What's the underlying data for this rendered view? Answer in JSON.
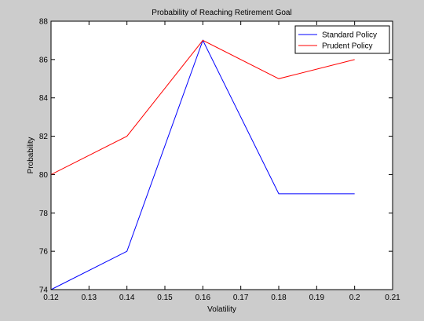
{
  "chart_data": {
    "type": "line",
    "title": "Probability of Reaching Retirement Goal",
    "xlabel": "Volatility",
    "ylabel": "Probability",
    "xlim": [
      0.12,
      0.21
    ],
    "ylim": [
      74,
      88
    ],
    "xticks": [
      0.12,
      0.13,
      0.14,
      0.15,
      0.16,
      0.17,
      0.18,
      0.19,
      0.2,
      0.21
    ],
    "xtick_labels": [
      "0.12",
      "0.13",
      "0.14",
      "0.15",
      "0.16",
      "0.17",
      "0.18",
      "0.19",
      "0.2",
      "0.21"
    ],
    "yticks": [
      74,
      76,
      78,
      80,
      82,
      84,
      86,
      88
    ],
    "ytick_labels": [
      "74",
      "76",
      "78",
      "80",
      "82",
      "84",
      "86",
      "88"
    ],
    "grid": false,
    "legend_position": "top-right",
    "x": [
      0.12,
      0.14,
      0.16,
      0.18,
      0.2
    ],
    "series": [
      {
        "name": "Standard Policy",
        "color": "#0000ff",
        "values": [
          74,
          76,
          87,
          79,
          79
        ]
      },
      {
        "name": "Prudent Policy",
        "color": "#ff0000",
        "values": [
          80,
          82,
          87,
          85,
          86
        ]
      }
    ]
  }
}
